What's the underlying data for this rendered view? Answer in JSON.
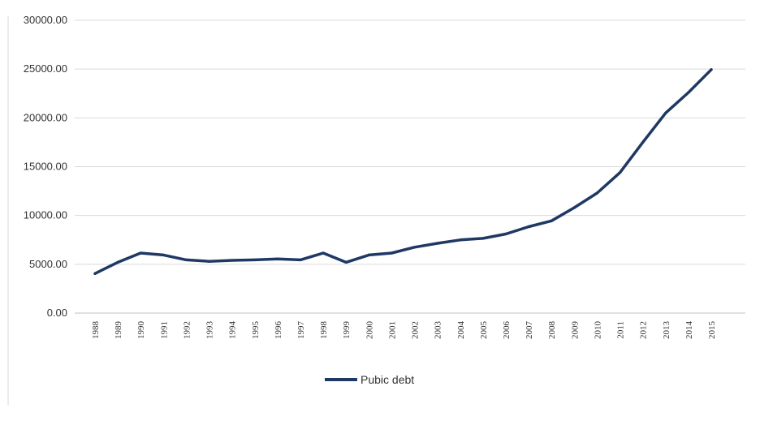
{
  "chart_data": {
    "type": "line",
    "title": "",
    "xlabel": "",
    "ylabel": "",
    "ylim": [
      0,
      30000
    ],
    "y_ticks": [
      "0.00",
      "5000.00",
      "10000.00",
      "15000.00",
      "20000.00",
      "25000.00",
      "30000.00"
    ],
    "y_tick_values": [
      0,
      5000,
      10000,
      15000,
      20000,
      25000,
      30000
    ],
    "categories": [
      "1988",
      "1989",
      "1990",
      "1991",
      "1992",
      "1993",
      "1994",
      "1995",
      "1996",
      "1997",
      "1998",
      "1999",
      "2000",
      "2001",
      "2002",
      "2003",
      "2004",
      "2005",
      "2006",
      "2007",
      "2008",
      "2009",
      "2010",
      "2011",
      "2012",
      "2013",
      "2014",
      "2015"
    ],
    "grid": true,
    "legend_position": "bottom",
    "series": [
      {
        "name": "Pubic debt",
        "color": "#1f3864",
        "values": [
          4050,
          5200,
          6150,
          5950,
          5450,
          5300,
          5400,
          5450,
          5550,
          5450,
          6150,
          5200,
          5950,
          6150,
          6750,
          7150,
          7500,
          7650,
          8100,
          8850,
          9450,
          10800,
          12300,
          14400,
          17500,
          20500,
          22600,
          24950
        ]
      }
    ]
  }
}
